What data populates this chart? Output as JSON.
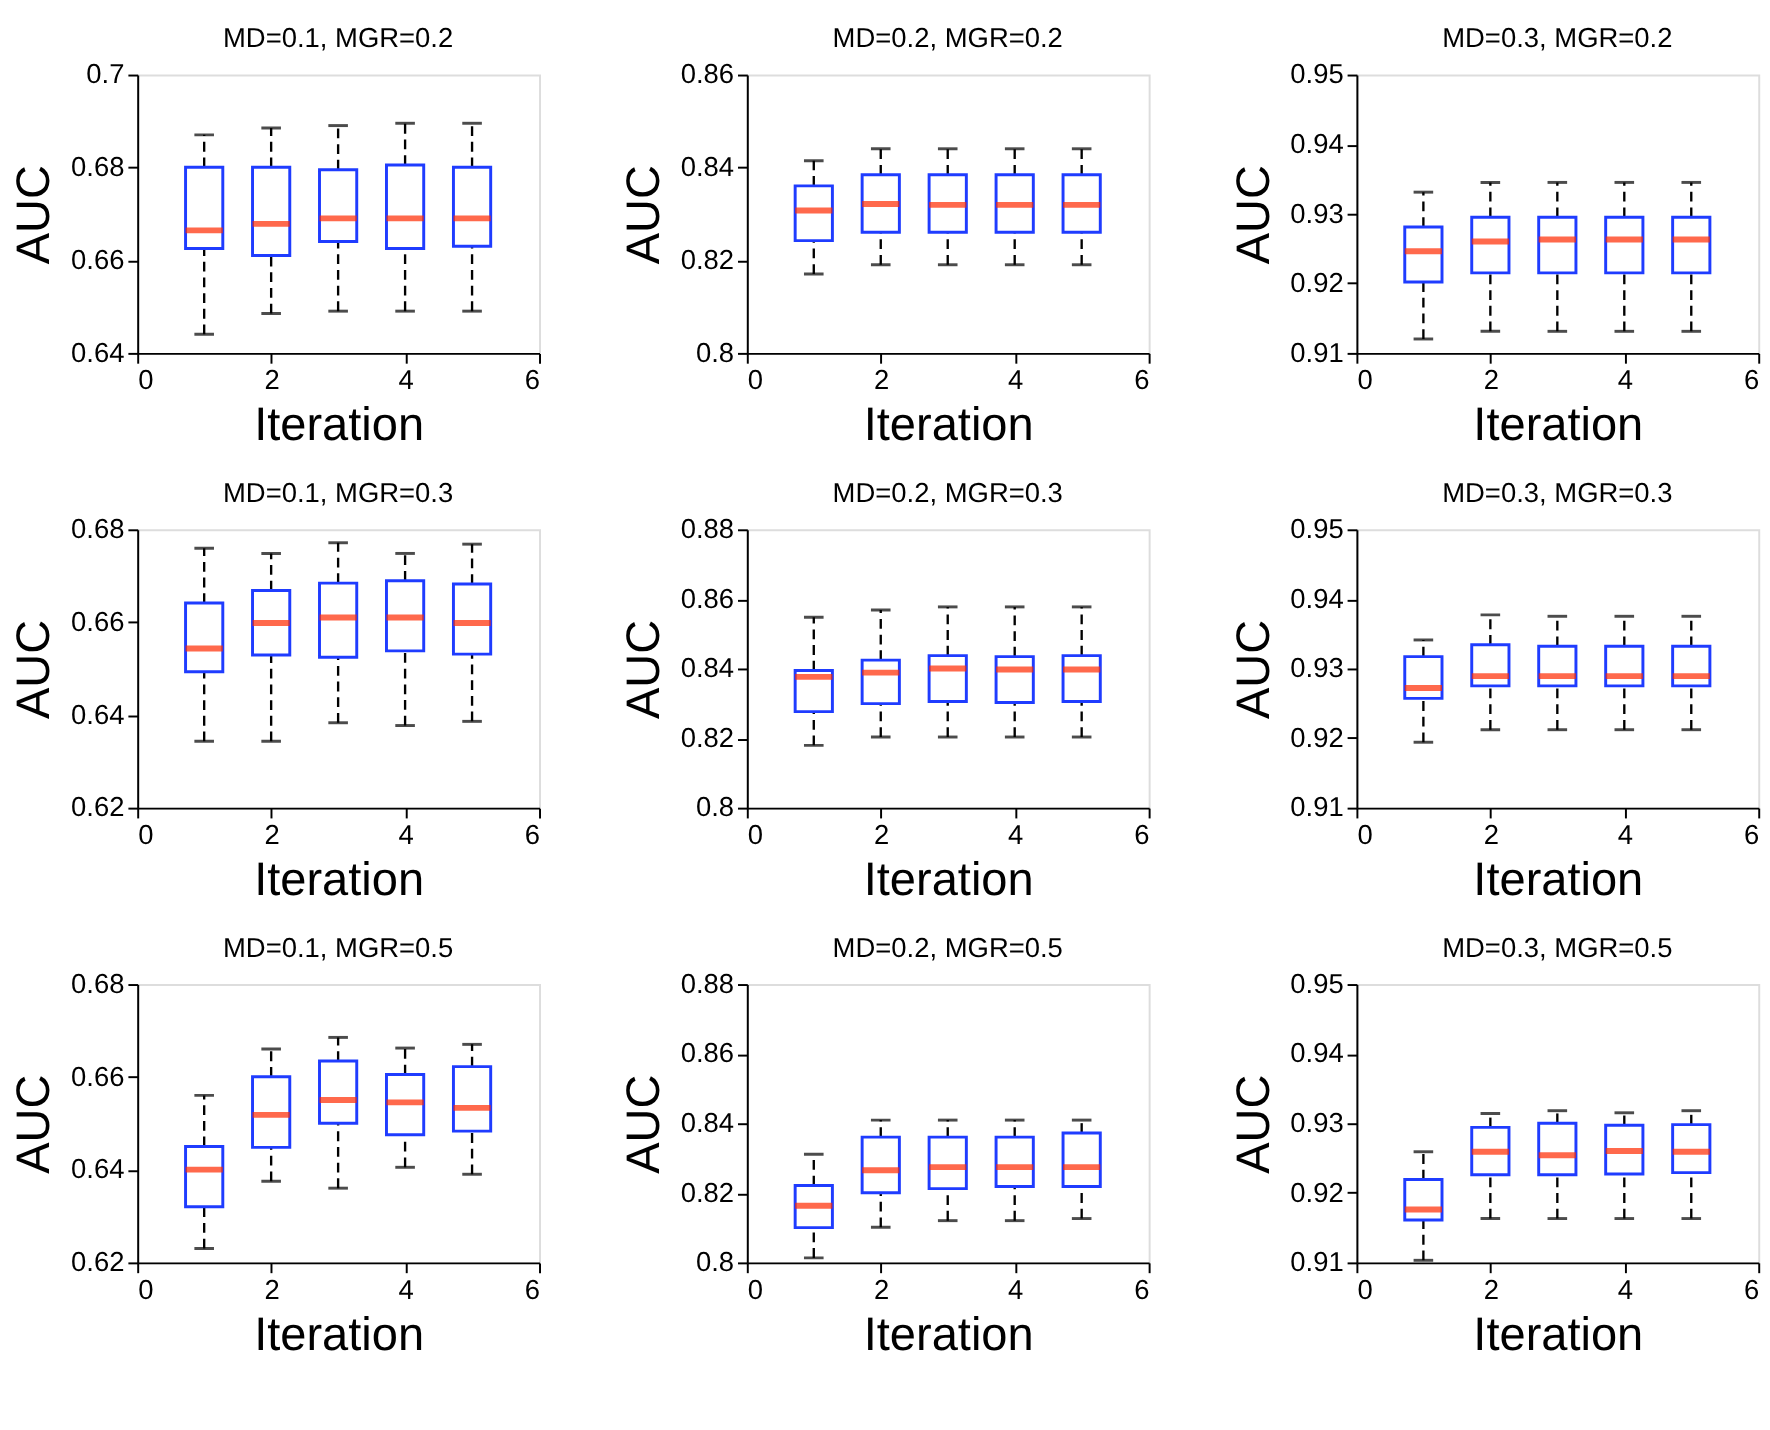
{
  "chart_data": [
    {
      "type": "box",
      "title": "MD=0.1, MGR=0.2",
      "xlabel": "Iteration",
      "ylabel": "AUC",
      "x": [
        1,
        2,
        3,
        4,
        5
      ],
      "xlim": [
        0,
        6
      ],
      "xticks": [
        0,
        2,
        4,
        6
      ],
      "ylim": [
        0.64,
        0.7
      ],
      "yticks": [
        0.64,
        0.66,
        0.68,
        0.7
      ],
      "grid": false,
      "series": [
        {
          "color": "#1f3cff",
          "boxes": [
            {
              "low": 0.644,
              "q1": 0.6625,
              "median": 0.6664,
              "q3": 0.68,
              "high": 0.687
            },
            {
              "low": 0.6485,
              "q1": 0.661,
              "median": 0.6678,
              "q3": 0.68,
              "high": 0.6885
            },
            {
              "low": 0.649,
              "q1": 0.664,
              "median": 0.669,
              "q3": 0.6795,
              "high": 0.689
            },
            {
              "low": 0.649,
              "q1": 0.6625,
              "median": 0.669,
              "q3": 0.6805,
              "high": 0.6895
            },
            {
              "low": 0.649,
              "q1": 0.663,
              "median": 0.669,
              "q3": 0.68,
              "high": 0.6895
            }
          ]
        }
      ]
    },
    {
      "type": "box",
      "title": "MD=0.2, MGR=0.2",
      "xlabel": "Iteration",
      "ylabel": "AUC",
      "x": [
        1,
        2,
        3,
        4,
        5
      ],
      "xlim": [
        0,
        6
      ],
      "xticks": [
        0,
        2,
        4,
        6
      ],
      "ylim": [
        0.8,
        0.86
      ],
      "yticks": [
        0.8,
        0.82,
        0.84,
        0.86
      ],
      "grid": false,
      "series": [
        {
          "color": "#1f3cff",
          "boxes": [
            {
              "low": 0.817,
              "q1": 0.8242,
              "median": 0.8307,
              "q3": 0.836,
              "high": 0.8414
            },
            {
              "low": 0.819,
              "q1": 0.826,
              "median": 0.8321,
              "q3": 0.8384,
              "high": 0.844
            },
            {
              "low": 0.819,
              "q1": 0.826,
              "median": 0.8319,
              "q3": 0.8384,
              "high": 0.844
            },
            {
              "low": 0.819,
              "q1": 0.826,
              "median": 0.8319,
              "q3": 0.8384,
              "high": 0.844
            },
            {
              "low": 0.819,
              "q1": 0.826,
              "median": 0.8319,
              "q3": 0.8384,
              "high": 0.844
            }
          ]
        }
      ]
    },
    {
      "type": "box",
      "title": "MD=0.3, MGR=0.2",
      "xlabel": "Iteration",
      "ylabel": "AUC",
      "x": [
        1,
        2,
        3,
        4,
        5
      ],
      "xlim": [
        0,
        6
      ],
      "xticks": [
        0,
        2,
        4,
        6
      ],
      "ylim": [
        0.91,
        0.95
      ],
      "yticks": [
        0.91,
        0.92,
        0.93,
        0.94,
        0.95
      ],
      "grid": false,
      "series": [
        {
          "color": "#1f3cff",
          "boxes": [
            {
              "low": 0.912,
              "q1": 0.9202,
              "median": 0.9246,
              "q3": 0.9281,
              "high": 0.9331
            },
            {
              "low": 0.9131,
              "q1": 0.9215,
              "median": 0.926,
              "q3": 0.9295,
              "high": 0.9345
            },
            {
              "low": 0.9131,
              "q1": 0.9215,
              "median": 0.9263,
              "q3": 0.9295,
              "high": 0.9345
            },
            {
              "low": 0.9131,
              "q1": 0.9215,
              "median": 0.9263,
              "q3": 0.9295,
              "high": 0.9345
            },
            {
              "low": 0.9131,
              "q1": 0.9215,
              "median": 0.9263,
              "q3": 0.9295,
              "high": 0.9345
            }
          ]
        }
      ]
    },
    {
      "type": "box",
      "title": "MD=0.1, MGR=0.3",
      "xlabel": "Iteration",
      "ylabel": "AUC",
      "x": [
        1,
        2,
        3,
        4,
        5
      ],
      "xlim": [
        0,
        6
      ],
      "xticks": [
        0,
        2,
        4,
        6
      ],
      "ylim": [
        0.62,
        0.68
      ],
      "yticks": [
        0.62,
        0.64,
        0.66,
        0.68
      ],
      "grid": false,
      "series": [
        {
          "color": "#1f3cff",
          "boxes": [
            {
              "low": 0.6343,
              "q1": 0.6493,
              "median": 0.6543,
              "q3": 0.6641,
              "high": 0.6759
            },
            {
              "low": 0.6343,
              "q1": 0.6529,
              "median": 0.6598,
              "q3": 0.6668,
              "high": 0.6748
            },
            {
              "low": 0.6383,
              "q1": 0.6524,
              "median": 0.661,
              "q3": 0.6684,
              "high": 0.6771
            },
            {
              "low": 0.6377,
              "q1": 0.6538,
              "median": 0.661,
              "q3": 0.6689,
              "high": 0.6748
            },
            {
              "low": 0.6386,
              "q1": 0.6531,
              "median": 0.6598,
              "q3": 0.6682,
              "high": 0.6768
            }
          ]
        }
      ]
    },
    {
      "type": "box",
      "title": "MD=0.2, MGR=0.3",
      "xlabel": "Iteration",
      "ylabel": "AUC",
      "x": [
        1,
        2,
        3,
        4,
        5
      ],
      "xlim": [
        0,
        6
      ],
      "xticks": [
        0,
        2,
        4,
        6
      ],
      "ylim": [
        0.8,
        0.88
      ],
      "yticks": [
        0.8,
        0.82,
        0.84,
        0.86,
        0.88
      ],
      "grid": false,
      "series": [
        {
          "color": "#1f3cff",
          "boxes": [
            {
              "low": 0.8179,
              "q1": 0.8276,
              "median": 0.8376,
              "q3": 0.8394,
              "high": 0.8547
            },
            {
              "low": 0.8203,
              "q1": 0.8299,
              "median": 0.8388,
              "q3": 0.8424,
              "high": 0.8568
            },
            {
              "low": 0.8203,
              "q1": 0.8305,
              "median": 0.84,
              "q3": 0.8437,
              "high": 0.8577
            },
            {
              "low": 0.8203,
              "q1": 0.8302,
              "median": 0.8397,
              "q3": 0.8434,
              "high": 0.8577
            },
            {
              "low": 0.8203,
              "q1": 0.8305,
              "median": 0.8397,
              "q3": 0.8437,
              "high": 0.8577
            }
          ]
        }
      ]
    },
    {
      "type": "box",
      "title": "MD=0.3, MGR=0.3",
      "xlabel": "Iteration",
      "ylabel": "AUC",
      "x": [
        1,
        2,
        3,
        4,
        5
      ],
      "xlim": [
        0,
        6
      ],
      "xticks": [
        0,
        2,
        4,
        6
      ],
      "ylim": [
        0.91,
        0.95
      ],
      "yticks": [
        0.91,
        0.92,
        0.93,
        0.94,
        0.95
      ],
      "grid": false,
      "series": [
        {
          "color": "#1f3cff",
          "boxes": [
            {
              "low": 0.9194,
              "q1": 0.9257,
              "median": 0.9272,
              "q3": 0.9317,
              "high": 0.9341
            },
            {
              "low": 0.9212,
              "q1": 0.9275,
              "median": 0.9289,
              "q3": 0.9334,
              "high": 0.9377
            },
            {
              "low": 0.9212,
              "q1": 0.9275,
              "median": 0.9289,
              "q3": 0.9332,
              "high": 0.9375
            },
            {
              "low": 0.9212,
              "q1": 0.9275,
              "median": 0.9289,
              "q3": 0.9332,
              "high": 0.9375
            },
            {
              "low": 0.9212,
              "q1": 0.9275,
              "median": 0.9289,
              "q3": 0.9332,
              "high": 0.9375
            }
          ]
        }
      ]
    },
    {
      "type": "box",
      "title": "MD=0.1, MGR=0.5",
      "xlabel": "Iteration",
      "ylabel": "AUC",
      "x": [
        1,
        2,
        3,
        4,
        5
      ],
      "xlim": [
        0,
        6
      ],
      "xticks": [
        0,
        2,
        4,
        6
      ],
      "ylim": [
        0.62,
        0.68
      ],
      "yticks": [
        0.62,
        0.64,
        0.66,
        0.68
      ],
      "grid": false,
      "series": [
        {
          "color": "#1f3cff",
          "boxes": [
            {
              "low": 0.623,
              "q1": 0.632,
              "median": 0.64,
              "q3": 0.645,
              "high": 0.656
            },
            {
              "low": 0.6375,
              "q1": 0.6448,
              "median": 0.6518,
              "q3": 0.66,
              "high": 0.666
            },
            {
              "low": 0.636,
              "q1": 0.65,
              "median": 0.655,
              "q3": 0.6634,
              "high": 0.6685
            },
            {
              "low": 0.6405,
              "q1": 0.6475,
              "median": 0.6545,
              "q3": 0.6605,
              "high": 0.6662
            },
            {
              "low": 0.639,
              "q1": 0.6483,
              "median": 0.6533,
              "q3": 0.6622,
              "high": 0.667
            }
          ]
        }
      ]
    },
    {
      "type": "box",
      "title": "MD=0.2, MGR=0.5",
      "xlabel": "Iteration",
      "ylabel": "AUC",
      "x": [
        1,
        2,
        3,
        4,
        5
      ],
      "xlim": [
        0,
        6
      ],
      "xticks": [
        0,
        2,
        4,
        6
      ],
      "ylim": [
        0.8,
        0.88
      ],
      "yticks": [
        0.8,
        0.82,
        0.84,
        0.86,
        0.88
      ],
      "grid": false,
      "series": [
        {
          "color": "#1f3cff",
          "boxes": [
            {
              "low": 0.8013,
              "q1": 0.81,
              "median": 0.8163,
              "q3": 0.8221,
              "high": 0.8311
            },
            {
              "low": 0.8101,
              "q1": 0.82,
              "median": 0.8265,
              "q3": 0.836,
              "high": 0.8409
            },
            {
              "low": 0.812,
              "q1": 0.8212,
              "median": 0.8274,
              "q3": 0.836,
              "high": 0.8409
            },
            {
              "low": 0.812,
              "q1": 0.8218,
              "median": 0.8274,
              "q3": 0.836,
              "high": 0.8409
            },
            {
              "low": 0.8126,
              "q1": 0.8218,
              "median": 0.8274,
              "q3": 0.8372,
              "high": 0.8409
            }
          ]
        }
      ]
    },
    {
      "type": "box",
      "title": "MD=0.3, MGR=0.5",
      "xlabel": "Iteration",
      "ylabel": "AUC",
      "x": [
        1,
        2,
        3,
        4,
        5
      ],
      "xlim": [
        0,
        6
      ],
      "xticks": [
        0,
        2,
        4,
        6
      ],
      "ylim": [
        0.91,
        0.95
      ],
      "yticks": [
        0.91,
        0.92,
        0.93,
        0.94,
        0.95
      ],
      "grid": false,
      "series": [
        {
          "color": "#1f3cff",
          "boxes": [
            {
              "low": 0.9103,
              "q1": 0.9161,
              "median": 0.9176,
              "q3": 0.9219,
              "high": 0.9259
            },
            {
              "low": 0.9163,
              "q1": 0.9226,
              "median": 0.9259,
              "q3": 0.9294,
              "high": 0.9314
            },
            {
              "low": 0.9163,
              "q1": 0.9226,
              "median": 0.9254,
              "q3": 0.93,
              "high": 0.9318
            },
            {
              "low": 0.9163,
              "q1": 0.9227,
              "median": 0.926,
              "q3": 0.9297,
              "high": 0.9315
            },
            {
              "low": 0.9163,
              "q1": 0.9229,
              "median": 0.9259,
              "q3": 0.9298,
              "high": 0.9318
            }
          ]
        }
      ]
    }
  ]
}
